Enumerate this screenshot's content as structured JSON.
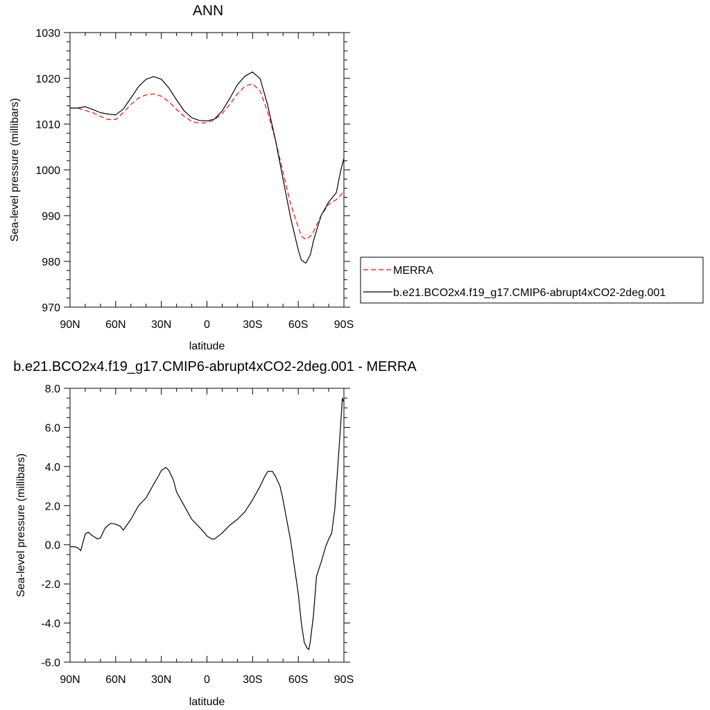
{
  "chart_data": [
    {
      "type": "line",
      "title": "ANN",
      "xlabel": "latitude",
      "ylabel": "Sea-level pressure (millibars)",
      "xlim": [
        90,
        -90
      ],
      "ylim": [
        970,
        1030
      ],
      "xticks": [
        90,
        60,
        30,
        0,
        -30,
        -60,
        -90
      ],
      "xtick_labels": [
        "90N",
        "60N",
        "30N",
        "0",
        "30S",
        "60S",
        "90S"
      ],
      "yticks": [
        970,
        980,
        990,
        1000,
        1010,
        1020,
        1030
      ],
      "ytick_labels": [
        "970",
        "980",
        "990",
        "1000",
        "1010",
        "1020",
        "1030"
      ],
      "legend_position": "right",
      "series": [
        {
          "name": "MERRA",
          "color": "#ff0000",
          "dash": "dashed",
          "x": [
            90,
            85,
            80,
            75,
            70,
            65,
            60,
            55,
            50,
            45,
            40,
            35,
            30,
            25,
            20,
            15,
            10,
            5,
            0,
            -5,
            -10,
            -15,
            -20,
            -25,
            -30,
            -35,
            -40,
            -45,
            -50,
            -55,
            -60,
            -62,
            -65,
            -68,
            -70,
            -75,
            -80,
            -85,
            -88,
            -90
          ],
          "y": [
            1013.5,
            1013.5,
            1013.0,
            1012.5,
            1011.7,
            1011.0,
            1011.0,
            1012.5,
            1014.3,
            1015.7,
            1016.4,
            1016.6,
            1016.1,
            1014.9,
            1013.2,
            1011.7,
            1010.6,
            1010.2,
            1010.3,
            1011.0,
            1012.3,
            1014.3,
            1016.6,
            1018.3,
            1018.8,
            1017.2,
            1012.5,
            1006.5,
            999.5,
            992.5,
            987.5,
            985.5,
            984.8,
            985.5,
            986.5,
            990.0,
            992.5,
            993.5,
            994.5,
            995.5
          ]
        },
        {
          "name": "b.e21.BCO2x4.f19_g17.CMIP6-abrupt4xCO2-2deg.001",
          "color": "#000000",
          "dash": "solid",
          "x": [
            90,
            85,
            80,
            75,
            70,
            65,
            60,
            55,
            50,
            45,
            40,
            35,
            30,
            25,
            20,
            15,
            10,
            5,
            0,
            -5,
            -10,
            -15,
            -20,
            -25,
            -30,
            -35,
            -40,
            -45,
            -50,
            -55,
            -60,
            -62,
            -65,
            -68,
            -70,
            -75,
            -80,
            -85,
            -88,
            -90
          ],
          "y": [
            1013.5,
            1013.5,
            1013.8,
            1013.2,
            1012.5,
            1012.2,
            1012.0,
            1013.3,
            1015.7,
            1018.2,
            1019.8,
            1020.4,
            1019.8,
            1017.9,
            1015.3,
            1012.9,
            1011.4,
            1010.8,
            1010.7,
            1011.1,
            1012.9,
            1015.6,
            1018.6,
            1020.5,
            1021.4,
            1019.9,
            1014.0,
            1006.5,
            998.0,
            989.5,
            982.5,
            980.3,
            979.6,
            981.5,
            984.5,
            990.0,
            993.0,
            995.0,
            1000.0,
            1002.5
          ]
        }
      ]
    },
    {
      "type": "line",
      "title": "b.e21.BCO2x4.f19_g17.CMIP6-abrupt4xCO2-2deg.001 - MERRA",
      "xlabel": "latitude",
      "ylabel": "Sea-level pressure (millibars)",
      "xlim": [
        90,
        -90
      ],
      "ylim": [
        -6,
        8
      ],
      "xticks": [
        90,
        60,
        30,
        0,
        -30,
        -60,
        -90
      ],
      "xtick_labels": [
        "90N",
        "60N",
        "30N",
        "0",
        "30S",
        "60S",
        "90S"
      ],
      "yticks": [
        -6,
        -4,
        -2,
        0,
        2,
        4,
        6,
        8
      ],
      "ytick_labels": [
        "-6.0",
        "-4.0",
        "-2.0",
        "0.0",
        "2.0",
        "4.0",
        "6.0",
        "8.0"
      ],
      "series": [
        {
          "color": "#000000",
          "dash": "solid",
          "x": [
            90,
            87,
            85,
            83,
            80,
            78,
            76,
            74,
            72,
            70,
            67,
            65,
            63,
            60,
            57,
            55,
            50,
            45,
            40,
            35,
            32,
            30,
            27,
            25,
            22,
            20,
            15,
            10,
            5,
            2,
            0,
            -3,
            -5,
            -10,
            -15,
            -20,
            -25,
            -30,
            -35,
            -38,
            -40,
            -43,
            -45,
            -48,
            -50,
            -55,
            -60,
            -62,
            -64,
            -66,
            -67,
            -68,
            -70,
            -72,
            -75,
            -78,
            -80,
            -82,
            -84,
            -86,
            -88,
            -89,
            -90
          ],
          "y": [
            -0.1,
            -0.1,
            -0.15,
            -0.3,
            0.55,
            0.65,
            0.5,
            0.4,
            0.3,
            0.35,
            0.85,
            1.0,
            1.1,
            1.05,
            0.95,
            0.75,
            1.3,
            2.0,
            2.4,
            3.1,
            3.5,
            3.8,
            3.95,
            3.8,
            3.3,
            2.7,
            2.0,
            1.3,
            0.9,
            0.65,
            0.45,
            0.3,
            0.3,
            0.6,
            1.0,
            1.3,
            1.7,
            2.3,
            3.0,
            3.5,
            3.75,
            3.75,
            3.5,
            3.0,
            2.3,
            0.2,
            -2.5,
            -4.0,
            -5.0,
            -5.3,
            -5.35,
            -4.9,
            -3.6,
            -1.6,
            -0.9,
            -0.1,
            0.3,
            0.6,
            1.8,
            4.0,
            6.3,
            7.5,
            7.3
          ]
        }
      ]
    }
  ]
}
